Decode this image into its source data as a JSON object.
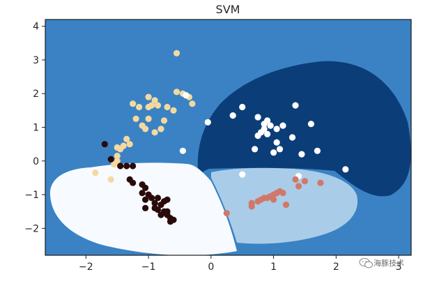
{
  "chart_data": {
    "type": "scatter",
    "title": "SVM",
    "xlabel": "",
    "ylabel": "",
    "xlim": [
      -2.65,
      3.2
    ],
    "ylim": [
      -2.8,
      4.2
    ],
    "x_ticks": [
      -2,
      -1,
      0,
      1,
      2,
      3
    ],
    "y_ticks": [
      -2,
      -1,
      0,
      1,
      2,
      3,
      4
    ],
    "grid": false,
    "legend": "none",
    "regions": [
      {
        "class": "background",
        "color": "#3a82c4"
      },
      {
        "class": "dark",
        "color": "#0b3d78"
      },
      {
        "class": "light",
        "color": "#a9cde8"
      },
      {
        "class": "white",
        "color": "#f7fbff"
      }
    ],
    "series": [
      {
        "color": "#f3d9a0",
        "points": [
          [
            -0.55,
            3.2
          ],
          [
            -0.45,
            2.0
          ],
          [
            -0.35,
            1.9
          ],
          [
            -0.3,
            1.7
          ],
          [
            -0.55,
            2.05
          ],
          [
            -0.6,
            1.5
          ],
          [
            -0.7,
            1.6
          ],
          [
            -0.75,
            1.2
          ],
          [
            -0.8,
            0.95
          ],
          [
            -0.9,
            0.85
          ],
          [
            -1.0,
            1.25
          ],
          [
            -1.05,
            0.95
          ],
          [
            -1.1,
            1.05
          ],
          [
            -0.9,
            1.8
          ],
          [
            -0.95,
            1.65
          ],
          [
            -1.0,
            1.6
          ],
          [
            -0.85,
            1.65
          ],
          [
            -1.0,
            1.9
          ],
          [
            -1.2,
            1.25
          ],
          [
            -1.25,
            1.7
          ],
          [
            -1.15,
            1.6
          ],
          [
            -1.3,
            0.5
          ],
          [
            -1.35,
            0.65
          ],
          [
            -1.4,
            0.45
          ],
          [
            -1.45,
            0.35
          ],
          [
            -1.5,
            0.4
          ],
          [
            -1.5,
            0.15
          ],
          [
            -1.5,
            0.0
          ],
          [
            -1.55,
            -0.1
          ],
          [
            -1.6,
            -0.55
          ],
          [
            -1.85,
            -0.35
          ]
        ]
      },
      {
        "color": "#2a0a0a",
        "points": [
          [
            -1.7,
            0.5
          ],
          [
            -1.6,
            0.05
          ],
          [
            -1.45,
            -0.15
          ],
          [
            -1.35,
            -0.15
          ],
          [
            -1.25,
            -0.15
          ],
          [
            -1.3,
            -0.55
          ],
          [
            -1.25,
            -0.65
          ],
          [
            -1.1,
            -0.7
          ],
          [
            -1.05,
            -0.8
          ],
          [
            -1.1,
            -0.95
          ],
          [
            -1.0,
            -1.0
          ],
          [
            -0.95,
            -1.1
          ],
          [
            -1.05,
            -1.15
          ],
          [
            -0.85,
            -1.1
          ],
          [
            -0.9,
            -1.25
          ],
          [
            -0.8,
            -1.3
          ],
          [
            -0.75,
            -1.2
          ],
          [
            -0.7,
            -1.15
          ],
          [
            -1.05,
            -1.4
          ],
          [
            -0.9,
            -1.4
          ],
          [
            -0.85,
            -1.45
          ],
          [
            -0.75,
            -1.5
          ],
          [
            -0.7,
            -1.5
          ],
          [
            -0.8,
            -1.6
          ],
          [
            -0.7,
            -1.6
          ],
          [
            -0.65,
            -1.7
          ],
          [
            -0.6,
            -1.75
          ],
          [
            -0.65,
            -1.8
          ]
        ]
      },
      {
        "color": "#ffffff",
        "points": [
          [
            -0.4,
            1.95
          ],
          [
            0.35,
            1.35
          ],
          [
            0.5,
            1.6
          ],
          [
            0.75,
            1.3
          ],
          [
            0.85,
            1.1
          ],
          [
            0.9,
            1.2
          ],
          [
            0.85,
            0.95
          ],
          [
            0.95,
            1.05
          ],
          [
            0.9,
            0.8
          ],
          [
            0.75,
            0.75
          ],
          [
            0.8,
            0.85
          ],
          [
            1.05,
            0.95
          ],
          [
            1.15,
            1.05
          ],
          [
            1.3,
            0.7
          ],
          [
            1.05,
            0.55
          ],
          [
            1.1,
            0.35
          ],
          [
            1.0,
            0.25
          ],
          [
            0.7,
            0.35
          ],
          [
            1.6,
            1.1
          ],
          [
            1.45,
            0.2
          ],
          [
            1.35,
            1.65
          ],
          [
            1.7,
            0.3
          ],
          [
            2.15,
            -0.25
          ],
          [
            1.4,
            -0.45
          ],
          [
            0.5,
            -0.4
          ],
          [
            -0.45,
            0.3
          ],
          [
            -0.05,
            1.15
          ]
        ]
      },
      {
        "color": "#d1786a",
        "points": [
          [
            0.25,
            -1.55
          ],
          [
            0.65,
            -1.35
          ],
          [
            0.65,
            -1.25
          ],
          [
            0.75,
            -1.2
          ],
          [
            0.8,
            -1.15
          ],
          [
            0.85,
            -1.1
          ],
          [
            0.95,
            -1.05
          ],
          [
            1.0,
            -1.0
          ],
          [
            1.05,
            -0.95
          ],
          [
            1.1,
            -0.9
          ],
          [
            1.15,
            -0.95
          ],
          [
            0.9,
            -1.1
          ],
          [
            1.0,
            -1.15
          ],
          [
            1.2,
            -1.3
          ],
          [
            1.35,
            -0.55
          ],
          [
            1.5,
            -0.6
          ],
          [
            1.75,
            -0.65
          ],
          [
            1.4,
            -0.75
          ]
        ]
      }
    ]
  },
  "watermark": {
    "icon": "wechat-logo-icon",
    "text": "海豚技术"
  }
}
